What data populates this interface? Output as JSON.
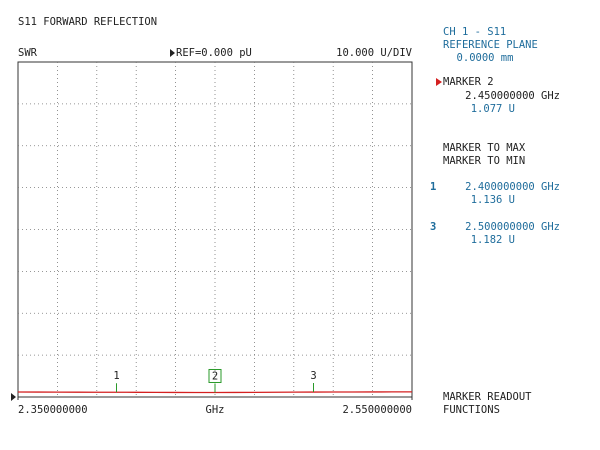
{
  "screen_title": "S11 FORWARD REFLECTION",
  "header": {
    "format": "SWR",
    "reference": "REF=0.000 pU",
    "scale": "10.000 U/DIV"
  },
  "panel": {
    "channel": "CH 1 - S11",
    "plane": "REFERENCE PLANE",
    "plane_value": "0.0000 mm",
    "active_marker": "MARKER 2",
    "to_max": "MARKER TO MAX",
    "to_min": "MARKER TO MIN",
    "softkey_1": "MARKER READOUT",
    "softkey_2": "FUNCTIONS"
  },
  "chart_data": {
    "type": "line",
    "x_label": "GHz",
    "x": [
      2.35,
      2.36,
      2.37,
      2.38,
      2.39,
      2.4,
      2.41,
      2.42,
      2.43,
      2.44,
      2.45,
      2.46,
      2.47,
      2.48,
      2.49,
      2.5,
      2.51,
      2.52,
      2.53,
      2.54,
      2.55
    ],
    "series": [
      {
        "color": "#d42020",
        "values": [
          1.2,
          1.18,
          1.16,
          1.15,
          1.14,
          1.136,
          1.12,
          1.1,
          1.09,
          1.08,
          1.077,
          1.09,
          1.11,
          1.13,
          1.16,
          1.182,
          1.19,
          1.2,
          1.21,
          1.22,
          1.23
        ]
      }
    ],
    "xlim": [
      2.35,
      2.55
    ],
    "xticks": [
      {
        "value": 2.35,
        "label": "2.350000000"
      },
      {
        "value": 2.55,
        "label": "2.550000000"
      }
    ],
    "xgrid": [
      2.37,
      2.39,
      2.41,
      2.43,
      2.45,
      2.47,
      2.49,
      2.51,
      2.53
    ],
    "ylim": [
      0,
      80
    ],
    "yticks": [
      0,
      10,
      20,
      30,
      40,
      50,
      60,
      70,
      80
    ],
    "grid": true,
    "marker_color": "#2a9a2a",
    "markers": [
      {
        "label": "1",
        "x": 2.4,
        "x_label": "2.400000000 GHz",
        "value": 1.136,
        "value_label": "1.136 U"
      },
      {
        "label": "2",
        "x": 2.45,
        "x_label": "2.450000000 GHz",
        "value": 1.077,
        "value_label": "1.077 U",
        "active": true
      },
      {
        "label": "3",
        "x": 2.5,
        "x_label": "2.500000000 GHz",
        "value": 1.182,
        "value_label": "1.182 U"
      }
    ]
  }
}
